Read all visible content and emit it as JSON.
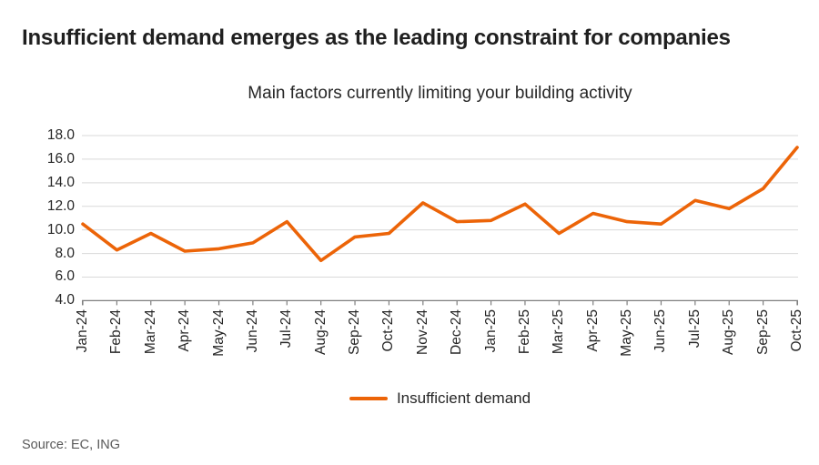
{
  "page": {
    "title": "Insufficient demand emerges as the leading constraint for companies",
    "source": "Source: EC, ING"
  },
  "colors": {
    "series_orange": "#EC6408",
    "gridline": "#d9d9d9",
    "axis": "#7f7f7f",
    "title_text": "#1f1f1f",
    "tick_text": "#262626",
    "source_text": "#595959"
  },
  "chart_data": {
    "type": "line",
    "title": "Main factors currently limiting your building activity",
    "categories": [
      "Jan-24",
      "Feb-24",
      "Mar-24",
      "Apr-24",
      "May-24",
      "Jun-24",
      "Jul-24",
      "Aug-24",
      "Sep-24",
      "Oct-24",
      "Nov-24",
      "Dec-24",
      "Jan-25",
      "Feb-25",
      "Mar-25",
      "Apr-25",
      "May-25",
      "Jun-25",
      "Jul-25",
      "Aug-25",
      "Sep-25",
      "Oct-25"
    ],
    "series": [
      {
        "name": "Insufficient demand",
        "color": "#EC6408",
        "values": [
          10.5,
          8.3,
          9.7,
          8.2,
          8.4,
          8.9,
          10.7,
          7.4,
          9.4,
          9.7,
          12.3,
          10.7,
          10.8,
          12.2,
          9.7,
          11.4,
          10.7,
          10.5,
          12.5,
          11.8,
          13.5,
          17.0
        ]
      }
    ],
    "ylim": [
      4.0,
      18.0
    ],
    "ytick_step": 2,
    "yticks": [
      "18.0",
      "16.0",
      "14.0",
      "12.0",
      "10.0",
      "8.0",
      "6.0",
      "4.0"
    ],
    "grid": "horizontal",
    "legend_position": "bottom",
    "x_label_rotation": -90
  }
}
